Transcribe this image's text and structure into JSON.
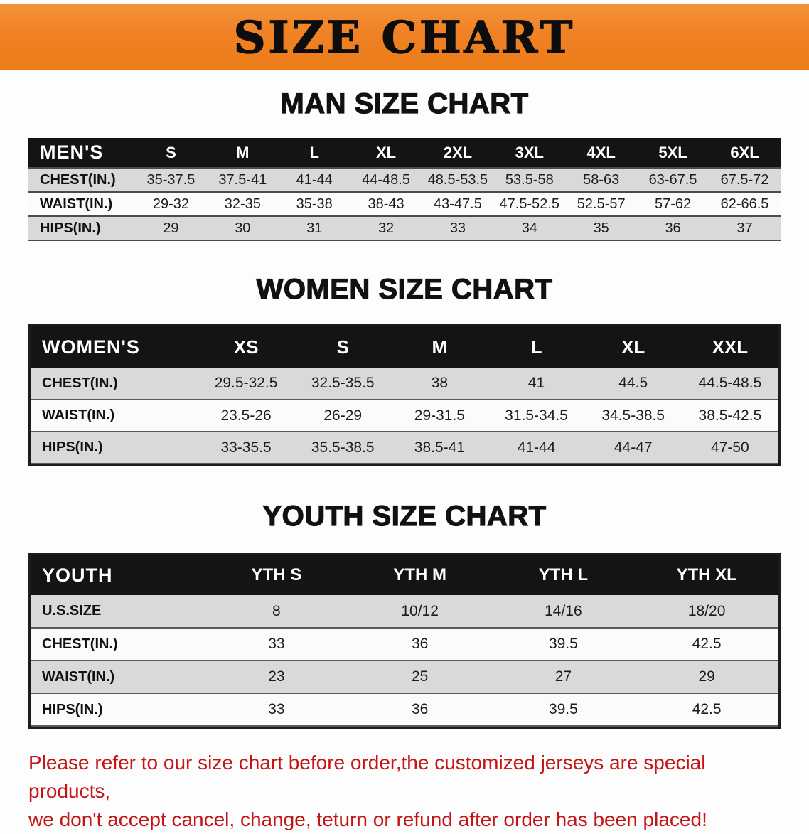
{
  "banner": {
    "title": "SIZE CHART",
    "bg": "#f08125"
  },
  "colors": {
    "banner_orange": "#f08125",
    "table_header_bg": "#141414",
    "row_shade_gray": "#d9d9d9",
    "note_red": "#c41414"
  },
  "men": {
    "heading": "MAN SIZE CHART",
    "label": "MEN'S",
    "columns": [
      "S",
      "M",
      "L",
      "XL",
      "2XL",
      "3XL",
      "4XL",
      "5XL",
      "6XL"
    ],
    "rows": [
      {
        "label": "CHEST(IN.)",
        "values": [
          "35-37.5",
          "37.5-41",
          "41-44",
          "44-48.5",
          "48.5-53.5",
          "53.5-58",
          "58-63",
          "63-67.5",
          "67.5-72"
        ]
      },
      {
        "label": "WAIST(IN.)",
        "values": [
          "29-32",
          "32-35",
          "35-38",
          "38-43",
          "43-47.5",
          "47.5-52.5",
          "52.5-57",
          "57-62",
          "62-66.5"
        ]
      },
      {
        "label": "HIPS(IN.)",
        "values": [
          "29",
          "30",
          "31",
          "32",
          "33",
          "34",
          "35",
          "36",
          "37"
        ]
      }
    ]
  },
  "women": {
    "heading": "WOMEN SIZE CHART",
    "label": "WOMEN'S",
    "columns": [
      "XS",
      "S",
      "M",
      "L",
      "XL",
      "XXL"
    ],
    "rows": [
      {
        "label": "CHEST(IN.)",
        "values": [
          "29.5-32.5",
          "32.5-35.5",
          "38",
          "41",
          "44.5",
          "44.5-48.5"
        ]
      },
      {
        "label": "WAIST(IN.)",
        "values": [
          "23.5-26",
          "26-29",
          "29-31.5",
          "31.5-34.5",
          "34.5-38.5",
          "38.5-42.5"
        ]
      },
      {
        "label": "HIPS(IN.)",
        "values": [
          "33-35.5",
          "35.5-38.5",
          "38.5-41",
          "41-44",
          "44-47",
          "47-50"
        ]
      }
    ]
  },
  "youth": {
    "heading": "YOUTH SIZE CHART",
    "label": "YOUTH",
    "columns": [
      "YTH S",
      "YTH M",
      "YTH L",
      "YTH XL"
    ],
    "rows": [
      {
        "label": "U.S.SIZE",
        "values": [
          "8",
          "10/12",
          "14/16",
          "18/20"
        ]
      },
      {
        "label": "CHEST(IN.)",
        "values": [
          "33",
          "36",
          "39.5",
          "42.5"
        ]
      },
      {
        "label": "WAIST(IN.)",
        "values": [
          "23",
          "25",
          "27",
          "29"
        ]
      },
      {
        "label": "HIPS(IN.)",
        "values": [
          "33",
          "36",
          "39.5",
          "42.5"
        ]
      }
    ]
  },
  "note": {
    "line1": "Please refer to our size chart before order,the customized jerseys are special products,",
    "line2": "we don't accept cancel, change, teturn or refund after order has been placed!"
  }
}
